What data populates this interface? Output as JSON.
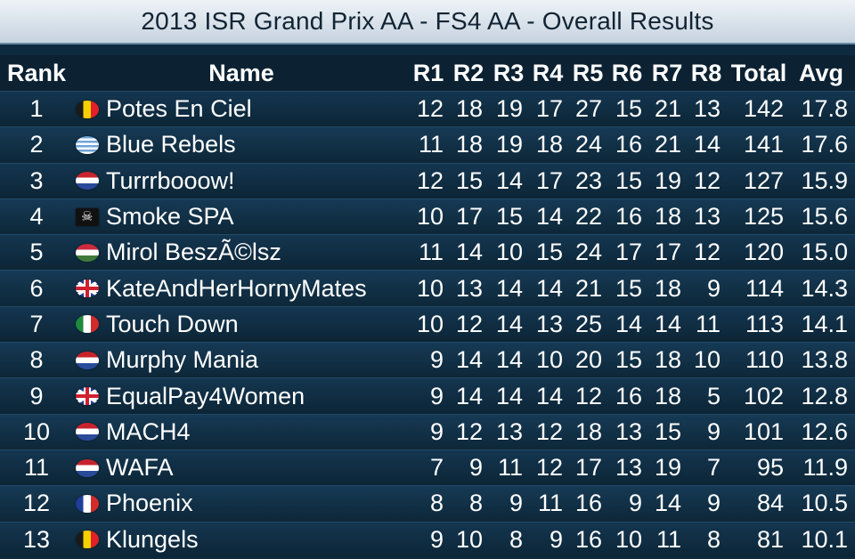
{
  "title": "2013 ISR Grand Prix AA - FS4 AA - Overall Results",
  "headers": {
    "rank": "Rank",
    "name": "Name",
    "r1": "R1",
    "r2": "R2",
    "r3": "R3",
    "r4": "R4",
    "r5": "R5",
    "r6": "R6",
    "r7": "R7",
    "r8": "R8",
    "total": "Total",
    "avg": "Avg"
  },
  "rows": [
    {
      "rank": "1",
      "flag": "belgium-flag-icon",
      "name": "Potes En Ciel",
      "r": [
        "12",
        "18",
        "19",
        "17",
        "27",
        "15",
        "21",
        "13"
      ],
      "total": "142",
      "avg": "17.8"
    },
    {
      "rank": "2",
      "flag": "greece-flag-icon",
      "name": "Blue Rebels",
      "r": [
        "11",
        "18",
        "19",
        "18",
        "24",
        "16",
        "21",
        "14"
      ],
      "total": "141",
      "avg": "17.6"
    },
    {
      "rank": "3",
      "flag": "netherlands-flag-icon",
      "name": "Turrrbooow!",
      "r": [
        "12",
        "15",
        "14",
        "17",
        "23",
        "15",
        "19",
        "12"
      ],
      "total": "127",
      "avg": "15.9"
    },
    {
      "rank": "4",
      "flag": "pirate-flag-icon",
      "name": "Smoke SPA",
      "r": [
        "10",
        "17",
        "15",
        "14",
        "22",
        "16",
        "18",
        "13"
      ],
      "total": "125",
      "avg": "15.6"
    },
    {
      "rank": "5",
      "flag": "hungary-flag-icon",
      "name": "Mirol BeszÃ©lsz",
      "r": [
        "11",
        "14",
        "10",
        "15",
        "24",
        "17",
        "17",
        "12"
      ],
      "total": "120",
      "avg": "15.0"
    },
    {
      "rank": "6",
      "flag": "uk-flag-icon",
      "name": "KateAndHerHornyMates",
      "r": [
        "10",
        "13",
        "14",
        "14",
        "21",
        "15",
        "18",
        "9"
      ],
      "total": "114",
      "avg": "14.3"
    },
    {
      "rank": "7",
      "flag": "italy-flag-icon",
      "name": "Touch Down",
      "r": [
        "10",
        "12",
        "14",
        "13",
        "25",
        "14",
        "14",
        "11"
      ],
      "total": "113",
      "avg": "14.1"
    },
    {
      "rank": "8",
      "flag": "netherlands-flag-icon",
      "name": "Murphy Mania",
      "r": [
        "9",
        "14",
        "14",
        "10",
        "20",
        "15",
        "18",
        "10"
      ],
      "total": "110",
      "avg": "13.8"
    },
    {
      "rank": "9",
      "flag": "uk-flag-icon",
      "name": "EqualPay4Women",
      "r": [
        "9",
        "14",
        "14",
        "14",
        "12",
        "16",
        "18",
        "5"
      ],
      "total": "102",
      "avg": "12.8"
    },
    {
      "rank": "10",
      "flag": "netherlands-flag-icon",
      "name": "MACH4",
      "r": [
        "9",
        "12",
        "13",
        "12",
        "18",
        "13",
        "15",
        "9"
      ],
      "total": "101",
      "avg": "12.6"
    },
    {
      "rank": "11",
      "flag": "netherlands-flag-icon",
      "name": "WAFA",
      "r": [
        "7",
        "9",
        "11",
        "12",
        "17",
        "13",
        "19",
        "7"
      ],
      "total": "95",
      "avg": "11.9"
    },
    {
      "rank": "12",
      "flag": "france-flag-icon",
      "name": "Phoenix",
      "r": [
        "8",
        "8",
        "9",
        "11",
        "16",
        "9",
        "14",
        "9"
      ],
      "total": "84",
      "avg": "10.5"
    },
    {
      "rank": "13",
      "flag": "belgium-flag-icon",
      "name": "Klungels",
      "r": [
        "9",
        "10",
        "8",
        "9",
        "16",
        "10",
        "11",
        "8"
      ],
      "total": "81",
      "avg": "10.1"
    }
  ]
}
